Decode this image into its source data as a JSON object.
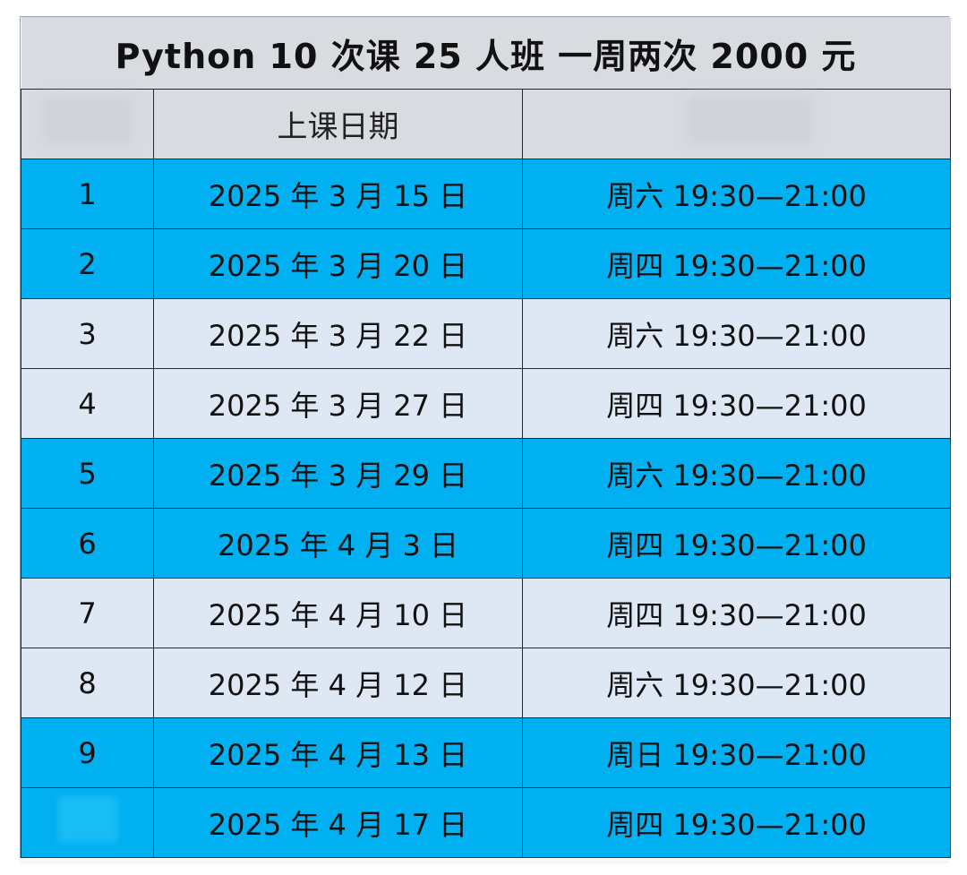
{
  "title": "Python  10 次课  25 人班  一周两次  2000 元",
  "header": {
    "col1": "",
    "col2": "上课日期",
    "col3": ""
  },
  "colors": {
    "title_bg": "#d8dbe0",
    "highlight_row": "#00b0f0",
    "normal_row": "#dde8f4",
    "border": "#1f2a36"
  },
  "rows": [
    {
      "no": "1",
      "date": "2025 年 3 月 15 日",
      "time": "周六 19:30—21:00",
      "style": "blue"
    },
    {
      "no": "2",
      "date": "2025 年 3 月 20 日",
      "time": "周四 19:30—21:00",
      "style": "blue"
    },
    {
      "no": "3",
      "date": "2025 年 3 月 22 日",
      "time": "周六 19:30—21:00",
      "style": "pale"
    },
    {
      "no": "4",
      "date": "2025 年 3 月 27 日",
      "time": "周四 19:30—21:00",
      "style": "pale"
    },
    {
      "no": "5",
      "date": "2025 年 3 月 29 日",
      "time": "周六 19:30—21:00",
      "style": "blue"
    },
    {
      "no": "6",
      "date": "2025 年 4 月 3 日",
      "time": "周四 19:30—21:00",
      "style": "blue"
    },
    {
      "no": "7",
      "date": "2025 年 4 月 10 日",
      "time": "周四 19:30—21:00",
      "style": "pale"
    },
    {
      "no": "8",
      "date": "2025 年 4 月 12 日",
      "time": "周六 19:30—21:00",
      "style": "pale"
    },
    {
      "no": "9",
      "date": "2025 年 4 月 13 日",
      "time": "周日 19:30—21:00",
      "style": "blue"
    },
    {
      "no": "",
      "date": "2025 年 4 月 17 日",
      "time": "周四 19:30—21:00",
      "style": "blue"
    }
  ]
}
